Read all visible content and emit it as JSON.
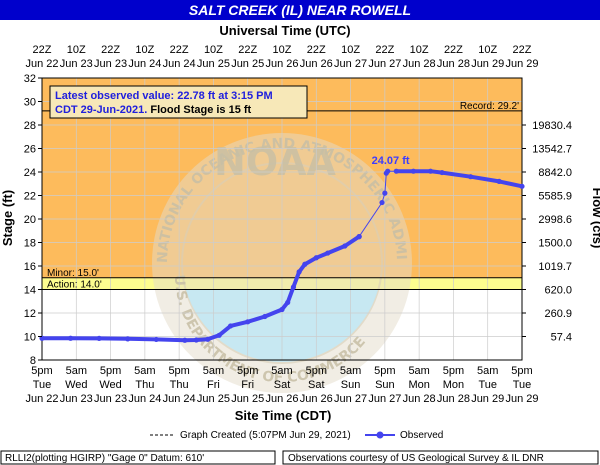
{
  "chart_data": {
    "type": "line",
    "title": "SALT CREEK (IL) NEAR ROWELL",
    "top_axis_label": "Universal Time (UTC)",
    "x_label": "Site Time (CDT)",
    "y_label": "Stage (ft)",
    "y2_label": "Flow (cfs)",
    "ylim": [
      8,
      32
    ],
    "y_ticks": [
      "8",
      "10",
      "12",
      "14",
      "16",
      "18",
      "20",
      "22",
      "24",
      "26",
      "28",
      "30",
      "32"
    ],
    "x_range_hours": [
      0,
      168
    ],
    "bottom_ticks": [
      {
        "time": "5pm",
        "day": "Tue",
        "date": "Jun 22"
      },
      {
        "time": "5am",
        "day": "Wed",
        "date": "Jun 23"
      },
      {
        "time": "5pm",
        "day": "Wed",
        "date": "Jun 23"
      },
      {
        "time": "5am",
        "day": "Thu",
        "date": "Jun 24"
      },
      {
        "time": "5pm",
        "day": "Thu",
        "date": "Jun 24"
      },
      {
        "time": "5am",
        "day": "Fri",
        "date": "Jun 25"
      },
      {
        "time": "5pm",
        "day": "Fri",
        "date": "Jun 25"
      },
      {
        "time": "5am",
        "day": "Sat",
        "date": "Jun 26"
      },
      {
        "time": "5pm",
        "day": "Sat",
        "date": "Jun 26"
      },
      {
        "time": "5am",
        "day": "Sun",
        "date": "Jun 27"
      },
      {
        "time": "5pm",
        "day": "Sun",
        "date": "Jun 27"
      },
      {
        "time": "5am",
        "day": "Mon",
        "date": "Jun 28"
      },
      {
        "time": "5pm",
        "day": "Mon",
        "date": "Jun 28"
      },
      {
        "time": "5am",
        "day": "Tue",
        "date": "Jun 29"
      },
      {
        "time": "5pm",
        "day": "Tue",
        "date": "Jun 29"
      }
    ],
    "top_ticks": [
      {
        "time": "22Z",
        "date": "Jun 22"
      },
      {
        "time": "10Z",
        "date": "Jun 23"
      },
      {
        "time": "22Z",
        "date": "Jun 23"
      },
      {
        "time": "10Z",
        "date": "Jun 24"
      },
      {
        "time": "22Z",
        "date": "Jun 24"
      },
      {
        "time": "10Z",
        "date": "Jun 25"
      },
      {
        "time": "22Z",
        "date": "Jun 25"
      },
      {
        "time": "10Z",
        "date": "Jun 26"
      },
      {
        "time": "22Z",
        "date": "Jun 26"
      },
      {
        "time": "10Z",
        "date": "Jun 27"
      },
      {
        "time": "22Z",
        "date": "Jun 27"
      },
      {
        "time": "10Z",
        "date": "Jun 28"
      },
      {
        "time": "22Z",
        "date": "Jun 28"
      },
      {
        "time": "10Z",
        "date": "Jun 29"
      },
      {
        "time": "22Z",
        "date": "Jun 29"
      }
    ],
    "flow_ticks": [
      {
        "stage": 10,
        "label": "57.4"
      },
      {
        "stage": 12,
        "label": "260.9"
      },
      {
        "stage": 14,
        "label": "620.0"
      },
      {
        "stage": 16,
        "label": "1019.7"
      },
      {
        "stage": 18,
        "label": "1500.0"
      },
      {
        "stage": 20,
        "label": "2998.6"
      },
      {
        "stage": 22,
        "label": "5585.9"
      },
      {
        "stage": 24,
        "label": "8842.0"
      },
      {
        "stage": 26,
        "label": "13542.7"
      },
      {
        "stage": 28,
        "label": "19830.4"
      }
    ],
    "thresholds": {
      "record": {
        "value": 29.2,
        "label": "Record:  29.2'"
      },
      "minor": {
        "value": 15.0,
        "label": "Minor:  15.0'"
      },
      "action": {
        "value": 14.0,
        "label": "Action:  14.0'"
      }
    },
    "peak_label": "24.07 ft",
    "info_line1": "Latest observed value: 22.78 ft at 3:15 PM",
    "info_line2_prefix": "CDT 29-Jun-2021.",
    "info_line2_suffix": "  Flood Stage is 15 ft",
    "legend_created": "Graph Created (5:07PM Jun 29, 2021)",
    "legend_observed": "Observed",
    "footer_left": "RLLI2(plotting HGIRP) \"Gage 0\" Datum: 610'",
    "footer_right": "Observations courtesy of US Geological Survey & IL DNR",
    "watermark_text": "NOAA",
    "watermark_ring_top": "NATIONAL OCEANIC AND ATMOSPHERIC ADMINISTRATION",
    "watermark_ring_bottom": "U.S. DEPARTMENT OF COMMERCE",
    "series": [
      {
        "name": "Observed",
        "points": [
          [
            0,
            9.85
          ],
          [
            10,
            9.85
          ],
          [
            20,
            9.84
          ],
          [
            30,
            9.8
          ],
          [
            40,
            9.75
          ],
          [
            50,
            9.68
          ],
          [
            54,
            9.7
          ],
          [
            58,
            9.76
          ],
          [
            62,
            10.1
          ],
          [
            66,
            10.9
          ],
          [
            72,
            11.25
          ],
          [
            78,
            11.7
          ],
          [
            84,
            12.3
          ],
          [
            86,
            12.9
          ],
          [
            88,
            14.2
          ],
          [
            90,
            15.5
          ],
          [
            92,
            16.15
          ],
          [
            96,
            16.7
          ],
          [
            100,
            17.1
          ],
          [
            106,
            17.7
          ],
          [
            111,
            18.5
          ],
          [
            111,
            18.5
          ],
          [
            119,
            21.4
          ],
          [
            120,
            22.2
          ],
          [
            120.5,
            23.9
          ],
          [
            121,
            24.07
          ],
          [
            124,
            24.07
          ],
          [
            130,
            24.07
          ],
          [
            136,
            24.07
          ],
          [
            140,
            23.95
          ],
          [
            150,
            23.6
          ],
          [
            160,
            23.2
          ],
          [
            168,
            22.78
          ]
        ]
      }
    ],
    "colors": {
      "title_bar": "#0000cc",
      "above_minor": "#fdbb5c",
      "action_band": "#fdfd8f",
      "observed": "#4444ee",
      "grid": "#cccccc"
    }
  }
}
